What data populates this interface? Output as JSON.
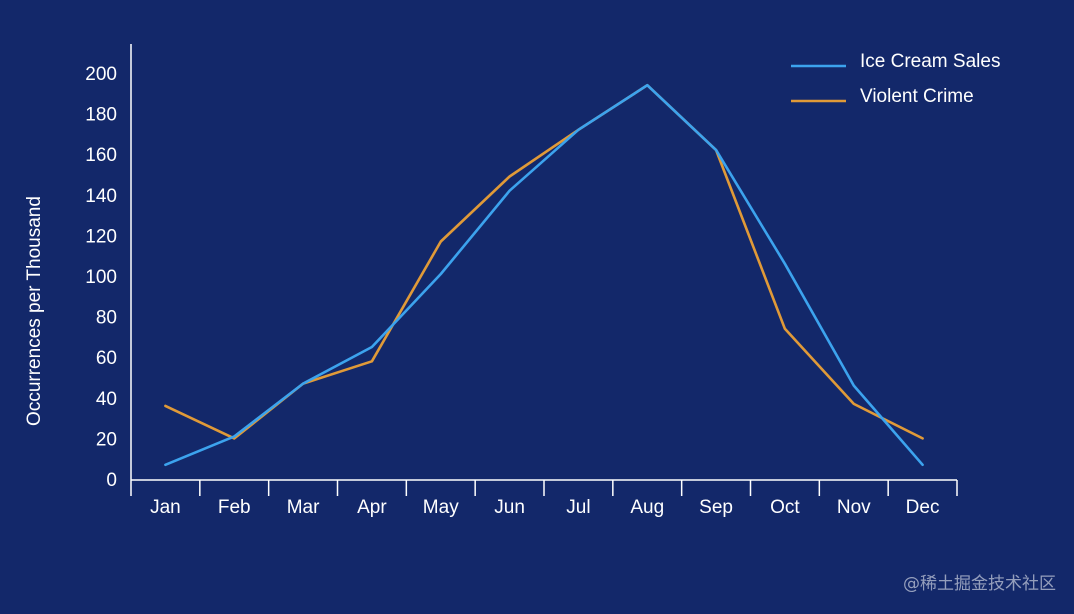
{
  "colors": {
    "background": "#13286a",
    "axis": "#ffffff",
    "ice_cream": "#3ca3ee",
    "violent_crime": "#e09a38"
  },
  "watermark": "@稀土掘金技术社区",
  "chart_data": {
    "type": "line",
    "categories": [
      "Jan",
      "Feb",
      "Mar",
      "Apr",
      "May",
      "Jun",
      "Jul",
      "Aug",
      "Sep",
      "Oct",
      "Nov",
      "Dec"
    ],
    "series": [
      {
        "name": "Ice Cream Sales",
        "color": "#3ca3ee",
        "values": [
          7,
          21,
          47,
          65,
          101,
          142,
          172,
          194,
          162,
          106,
          46,
          7
        ]
      },
      {
        "name": "Violent Crime",
        "color": "#e09a38",
        "values": [
          36,
          20,
          47,
          58,
          117,
          149,
          172,
          194,
          162,
          74,
          37,
          20
        ]
      }
    ],
    "title": "",
    "xlabel": "",
    "ylabel": "Occurrences per Thousand",
    "ylim": [
      0,
      210
    ],
    "yticks": [
      0,
      20,
      40,
      60,
      80,
      100,
      120,
      140,
      160,
      180,
      200
    ],
    "grid": false,
    "legend_position": "top-right"
  }
}
